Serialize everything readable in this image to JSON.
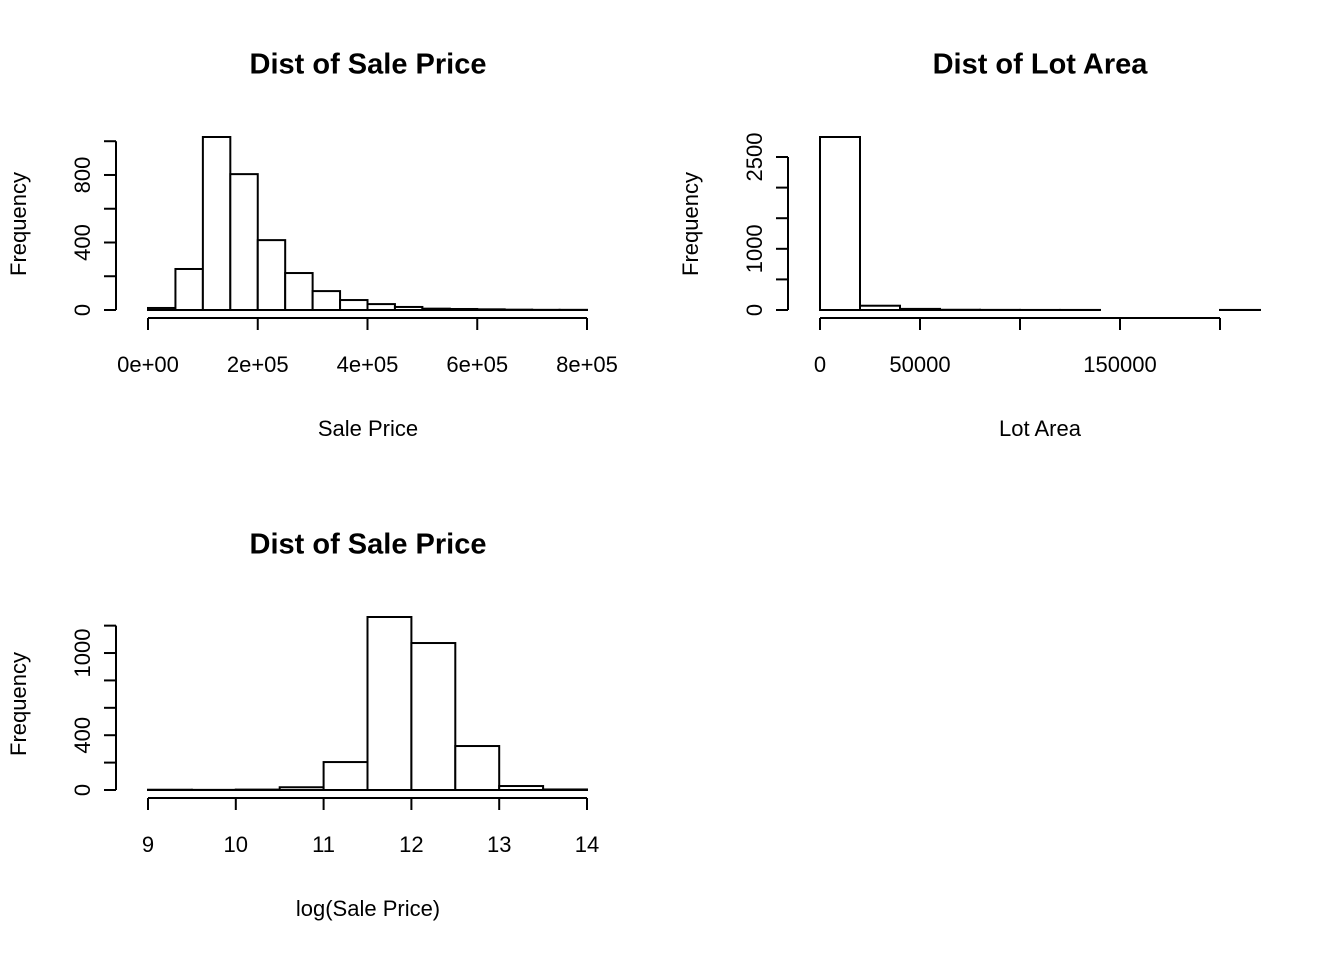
{
  "chart_data": [
    {
      "type": "histogram",
      "title": "Dist of Sale Price",
      "xlabel": "Sale Price",
      "ylabel": "Frequency",
      "bins": [
        0,
        50000,
        100000,
        150000,
        200000,
        250000,
        300000,
        350000,
        400000,
        450000,
        500000,
        550000,
        600000,
        650000,
        700000,
        750000,
        800000
      ],
      "values": [
        12,
        243,
        1025,
        805,
        414,
        219,
        112,
        59,
        35,
        18,
        8,
        6,
        4,
        2,
        1,
        1
      ],
      "color": "#ffffff",
      "edgecolor": "#000000",
      "xlim": [
        0,
        800000
      ],
      "xticks": [
        {
          "value": 0,
          "label": "0e+00"
        },
        {
          "value": 200000,
          "label": "2e+05"
        },
        {
          "value": 400000,
          "label": "4e+05"
        },
        {
          "value": 600000,
          "label": "6e+05"
        },
        {
          "value": 800000,
          "label": "8e+05"
        }
      ],
      "ylim": [
        0,
        1025
      ],
      "yticks": [
        0,
        {
          "value": 200,
          "label": null
        },
        400,
        {
          "value": 600,
          "label": null
        },
        800,
        {
          "value": 1000,
          "label": null
        }
      ]
    },
    {
      "type": "histogram",
      "title": "Dist of Lot Area",
      "xlabel": "Lot Area",
      "ylabel": "Frequency",
      "bins": [
        0,
        20000,
        40000,
        60000,
        80000,
        100000,
        120000,
        140000,
        160000,
        180000,
        200000,
        220000
      ],
      "values": [
        2827,
        70,
        18,
        4,
        2,
        1,
        1,
        0,
        0,
        0,
        1
      ],
      "color": "#ffffff",
      "edgecolor": "#000000",
      "xlim": [
        0,
        220000
      ],
      "xticks": [
        0,
        50000,
        {
          "value": 100000,
          "label": null
        },
        150000,
        {
          "value": 200000,
          "label": null
        }
      ],
      "ylim": [
        0,
        2827
      ],
      "yticks": [
        0,
        {
          "value": 500,
          "label": null
        },
        1000,
        {
          "value": 1500,
          "label": null
        },
        {
          "value": 2000,
          "label": null
        },
        2500
      ]
    },
    {
      "type": "histogram",
      "title": "Dist of Sale Price",
      "xlabel": "log(Sale Price)",
      "ylabel": "Frequency",
      "bins": [
        9,
        9.5,
        10,
        10.5,
        11,
        11.5,
        12,
        12.5,
        13,
        13.5,
        14
      ],
      "values": [
        2,
        1,
        3,
        20,
        204,
        1263,
        1073,
        321,
        29,
        4
      ],
      "color": "#ffffff",
      "edgecolor": "#000000",
      "xlim": [
        9,
        14
      ],
      "xticks": [
        9,
        10,
        11,
        12,
        13,
        14
      ],
      "ylim": [
        0,
        1263
      ],
      "yticks": [
        0,
        {
          "value": 200,
          "label": null
        },
        400,
        {
          "value": 600,
          "label": null
        },
        {
          "value": 800,
          "label": null
        },
        1000,
        {
          "value": 1200,
          "label": null
        }
      ]
    }
  ]
}
